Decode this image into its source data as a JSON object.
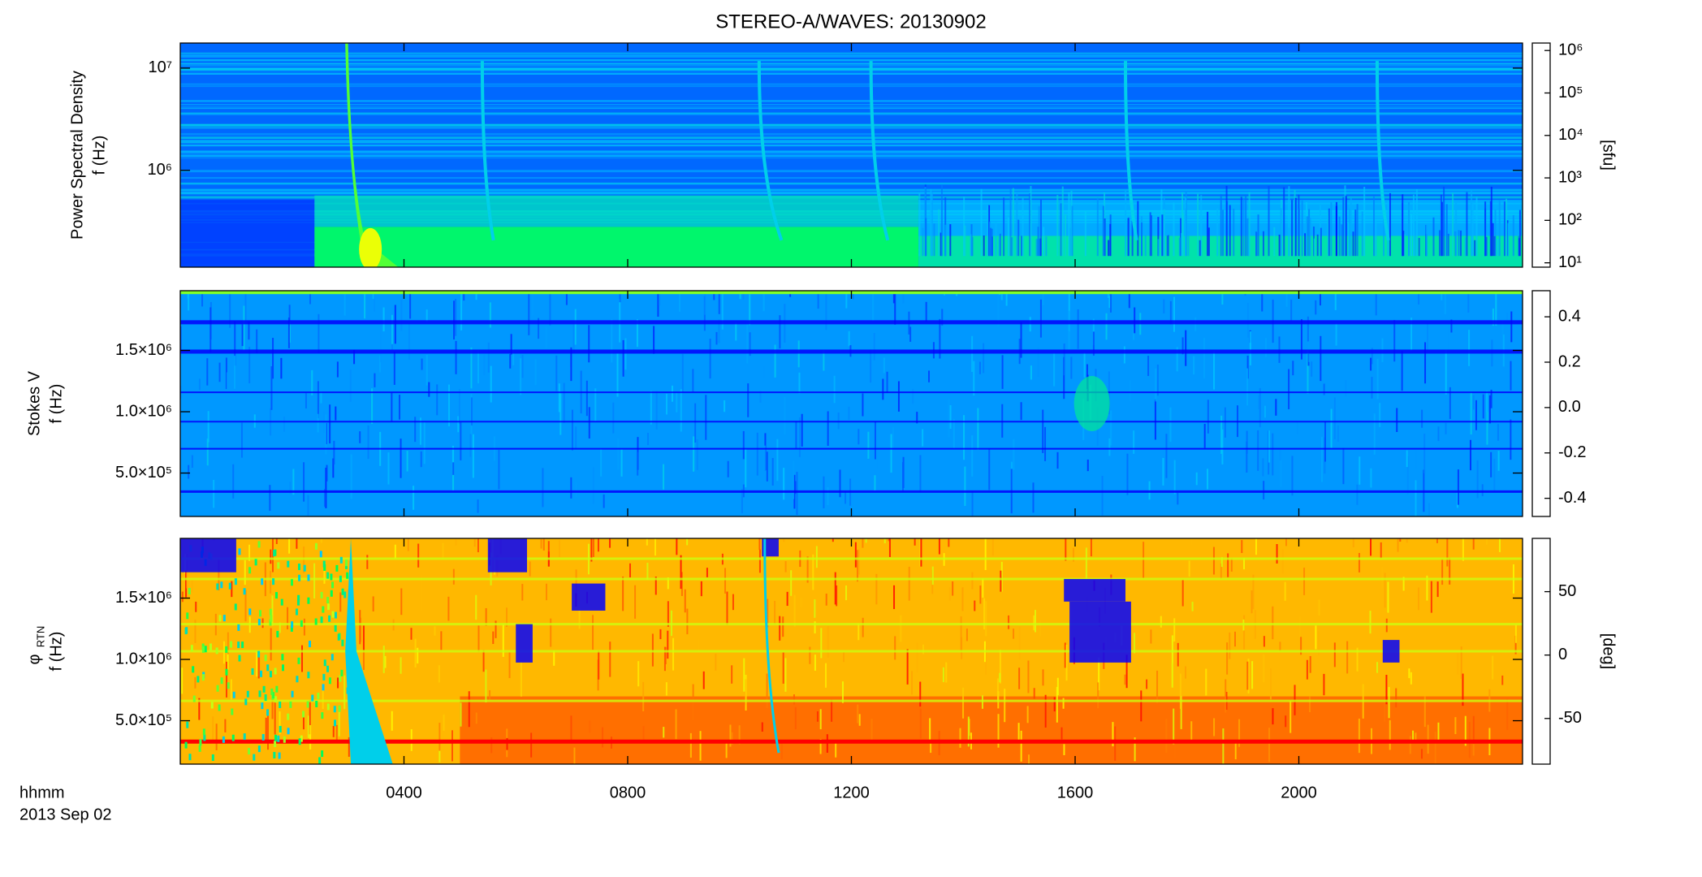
{
  "chart_data": [
    {
      "type": "spectrogram",
      "title": "STEREO-A/WAVES: 20130902",
      "ylabel": [
        "Power Spectral Density",
        "f (Hz)"
      ],
      "ylog": true,
      "ylim": [
        113000,
        17600000
      ],
      "yticks": [
        {
          "value": 1000000,
          "label": "10⁶"
        },
        {
          "value": 10000000,
          "label": "10⁷"
        }
      ],
      "colormap": [
        "#000000",
        "#6a00b0",
        "#0000ff",
        "#00c8ff",
        "#00ff50",
        "#ffff00",
        "#ff0000"
      ],
      "colorbar": {
        "label": "[sfu]",
        "log": true,
        "lim": [
          7.9,
          1500000
        ],
        "ticks": [
          {
            "value": 10,
            "label": "10¹"
          },
          {
            "value": 100,
            "label": "10²"
          },
          {
            "value": 1000,
            "label": "10³"
          },
          {
            "value": 10000,
            "label": "10⁴"
          },
          {
            "value": 100000,
            "label": "10⁵"
          },
          {
            "value": 1000000,
            "label": "10⁶"
          }
        ]
      }
    },
    {
      "type": "spectrogram",
      "ylabel": [
        "Stokes V",
        "f (Hz)"
      ],
      "ylog": false,
      "ylim": [
        146000,
        1987000
      ],
      "yticks": [
        {
          "value": 500000,
          "label": "5.0×10⁵"
        },
        {
          "value": 1000000,
          "label": "1.0×10⁶"
        },
        {
          "value": 1500000,
          "label": "1.5×10⁶"
        }
      ],
      "colormap": [
        "#000000",
        "#6a00b0",
        "#0000ff",
        "#00c8ff",
        "#00ff50",
        "#ffff00",
        "#ff0000"
      ],
      "colorbar": {
        "log": false,
        "lim": [
          -0.48,
          0.515
        ],
        "ticks": [
          -0.4,
          -0.2,
          {
            "value": 0,
            "label": "0.0"
          },
          0.2,
          0.4
        ]
      }
    },
    {
      "type": "spectrogram",
      "ylabel": [
        "φ",
        "f (Hz)"
      ],
      "ylabel_sub": "RTN",
      "ylog": false,
      "ylim": [
        146000,
        1987000
      ],
      "yticks": [
        {
          "value": 500000,
          "label": "5.0×10⁵"
        },
        {
          "value": 1000000,
          "label": "1.0×10⁶"
        },
        {
          "value": 1500000,
          "label": "1.5×10⁶"
        }
      ],
      "colormap": [
        "#000000",
        "#6a00b0",
        "#0000ff",
        "#00c8ff",
        "#00ff50",
        "#ffff00",
        "#ff0000"
      ],
      "colorbar": {
        "label": "[deg]",
        "log": false,
        "lim": [
          -86,
          92
        ],
        "ticks": [
          -50,
          0,
          50
        ]
      },
      "xlabel": "hhmm",
      "date": "2013 Sep 02",
      "xlim": [
        0,
        24
      ],
      "xticks": [
        {
          "value": 4,
          "label": "0400"
        },
        {
          "value": 8,
          "label": "0800"
        },
        {
          "value": 12,
          "label": "1200"
        },
        {
          "value": 16,
          "label": "1600"
        },
        {
          "value": 20,
          "label": "2000"
        }
      ]
    }
  ]
}
